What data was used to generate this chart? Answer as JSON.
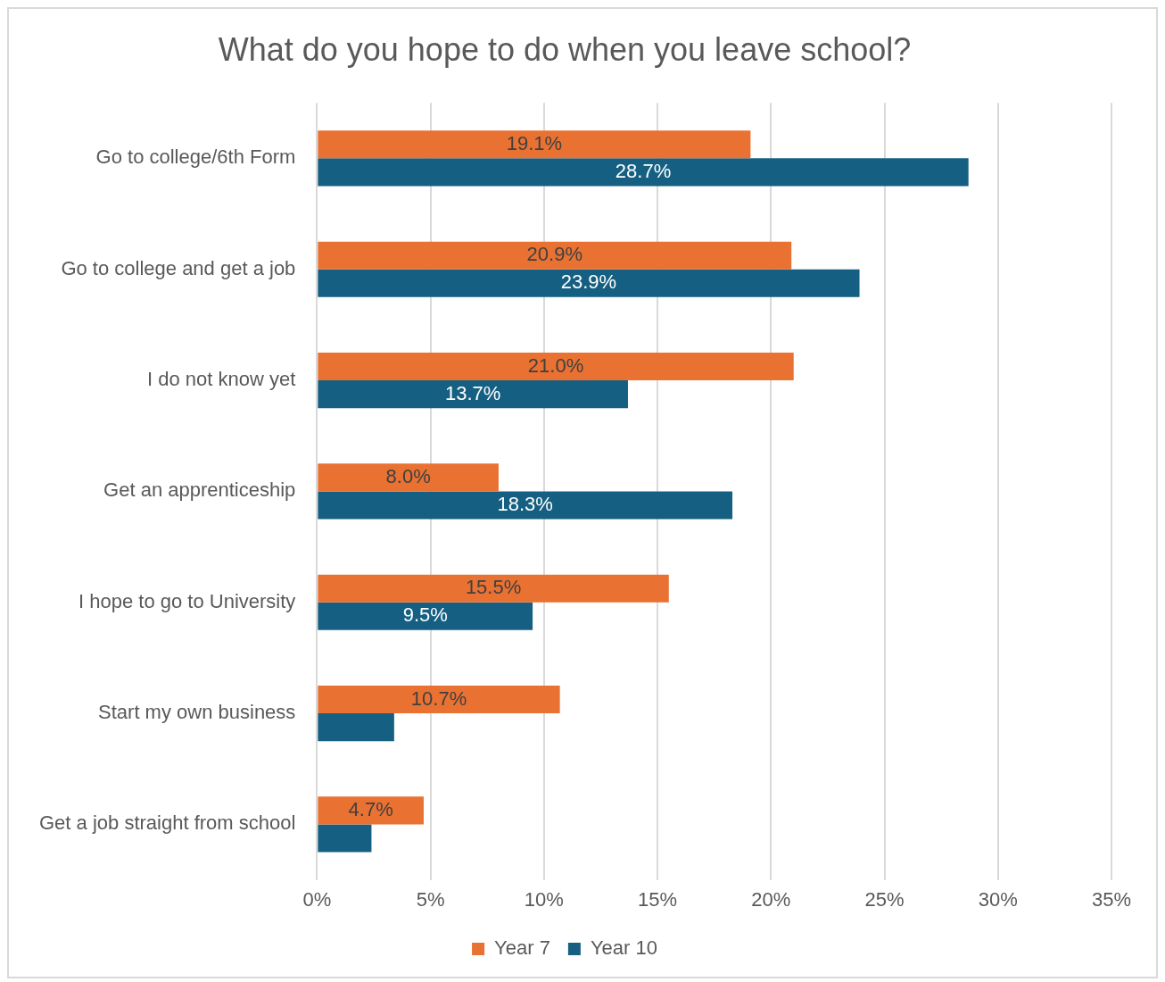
{
  "chart_data": {
    "type": "bar",
    "orientation": "horizontal",
    "title": "What do you hope to do when you leave school?",
    "categories": [
      "Go to college/6th Form",
      "Go to college and get a job",
      "I do not know yet",
      "Get an apprenticeship",
      "I hope to go to University",
      "Start my own business",
      "Get a job straight from school"
    ],
    "series": [
      {
        "name": "Year 7",
        "color": "#e97132",
        "values": [
          19.1,
          20.9,
          21.0,
          8.0,
          15.5,
          10.7,
          4.7
        ],
        "value_labels": [
          "19.1%",
          "20.9%",
          "21.0%",
          "8.0%",
          "15.5%",
          "10.7%",
          "4.7%"
        ]
      },
      {
        "name": "Year 10",
        "color": "#156082",
        "values": [
          28.7,
          23.9,
          13.7,
          18.3,
          9.5,
          3.4,
          2.4
        ],
        "value_labels": [
          "28.7%",
          "23.9%",
          "13.7%",
          "18.3%",
          "9.5%",
          null,
          null
        ]
      }
    ],
    "xlim": [
      0,
      35
    ],
    "xticks": [
      {
        "value": 0,
        "label": "0%"
      },
      {
        "value": 5,
        "label": "5%"
      },
      {
        "value": 10,
        "label": "10%"
      },
      {
        "value": 15,
        "label": "15%"
      },
      {
        "value": 20,
        "label": "20%"
      },
      {
        "value": 25,
        "label": "25%"
      },
      {
        "value": 30,
        "label": "30%"
      },
      {
        "value": 35,
        "label": "35%"
      }
    ],
    "grid": "x",
    "legend": "bottom"
  }
}
